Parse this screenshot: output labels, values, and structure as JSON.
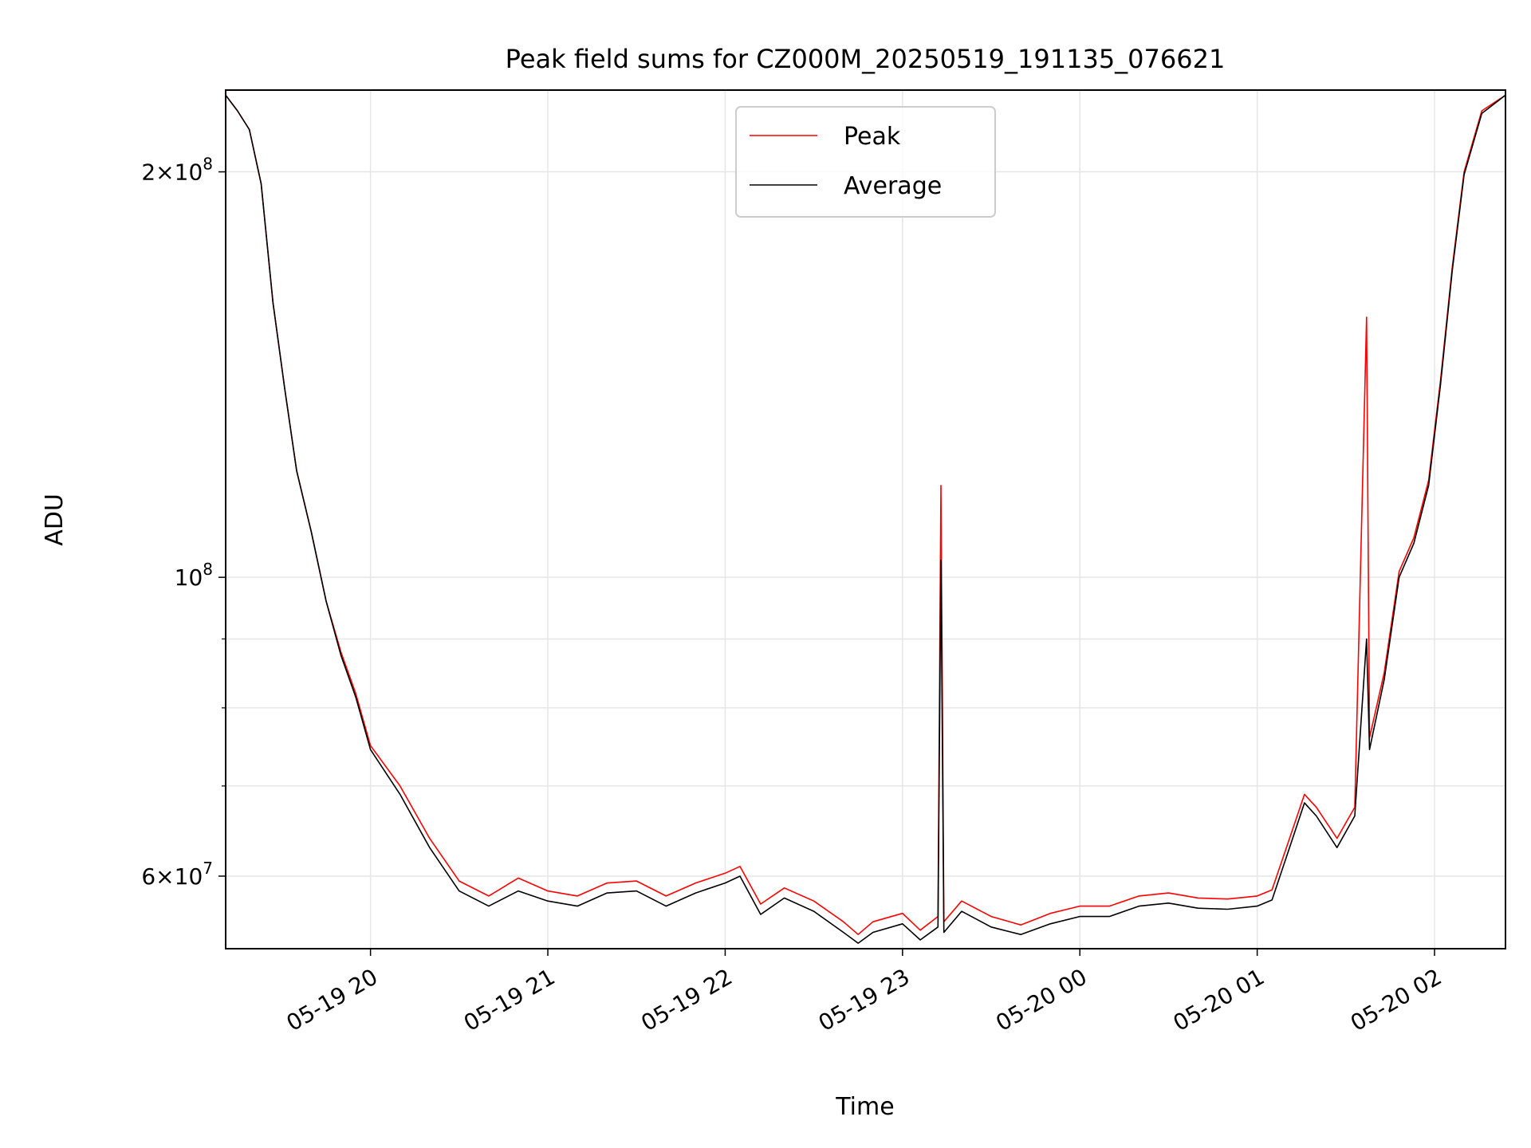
{
  "chart_data": {
    "type": "line",
    "title": "Peak field sums for CZ000M_20250519_191135_076621",
    "xlabel": "Time",
    "ylabel": "ADU",
    "yscale": "log",
    "ylim": [
      53000000,
      230000000
    ],
    "xlim": [
      "2025-05-19 19:11",
      "2025-05-20 02:24"
    ],
    "grid": true,
    "legend_position": "top-center",
    "x_ticks": [
      {
        "t": "2025-05-19 20:00",
        "label": "05-19 20"
      },
      {
        "t": "2025-05-19 21:00",
        "label": "05-19 21"
      },
      {
        "t": "2025-05-19 22:00",
        "label": "05-19 22"
      },
      {
        "t": "2025-05-19 23:00",
        "label": "05-19 23"
      },
      {
        "t": "2025-05-20 00:00",
        "label": "05-20 00"
      },
      {
        "t": "2025-05-20 01:00",
        "label": "05-20 01"
      },
      {
        "t": "2025-05-20 02:00",
        "label": "05-20 02"
      }
    ],
    "y_ticks_major": [
      {
        "v": 60000000,
        "base": "6",
        "sup": "7"
      },
      {
        "v": 100000000,
        "base": "",
        "sup": "8"
      },
      {
        "v": 200000000,
        "base": "2",
        "sup": "8"
      }
    ],
    "y_ticks_minor": [
      70000000,
      80000000,
      90000000
    ],
    "series": [
      {
        "name": "Peak",
        "color": "#ff0000",
        "points": [
          [
            "2025-05-19 19:11",
            228000000
          ],
          [
            "2025-05-19 19:15",
            222000000
          ],
          [
            "2025-05-19 19:19",
            215000000
          ],
          [
            "2025-05-19 19:23",
            196000000
          ],
          [
            "2025-05-19 19:27",
            160000000
          ],
          [
            "2025-05-19 19:31",
            138000000
          ],
          [
            "2025-05-19 19:35",
            120000000
          ],
          [
            "2025-05-19 19:40",
            108000000
          ],
          [
            "2025-05-19 19:45",
            96000000
          ],
          [
            "2025-05-19 19:50",
            88000000
          ],
          [
            "2025-05-19 19:55",
            82000000
          ],
          [
            "2025-05-19 20:00",
            75000000
          ],
          [
            "2025-05-19 20:10",
            70000000
          ],
          [
            "2025-05-19 20:20",
            64000000
          ],
          [
            "2025-05-19 20:30",
            59500000
          ],
          [
            "2025-05-19 20:40",
            58000000
          ],
          [
            "2025-05-19 20:50",
            59800000
          ],
          [
            "2025-05-19 21:00",
            58500000
          ],
          [
            "2025-05-19 21:10",
            58000000
          ],
          [
            "2025-05-19 21:20",
            59300000
          ],
          [
            "2025-05-19 21:30",
            59500000
          ],
          [
            "2025-05-19 21:40",
            58000000
          ],
          [
            "2025-05-19 21:50",
            59300000
          ],
          [
            "2025-05-19 22:00",
            60300000
          ],
          [
            "2025-05-19 22:05",
            61000000
          ],
          [
            "2025-05-19 22:12",
            57200000
          ],
          [
            "2025-05-19 22:20",
            58800000
          ],
          [
            "2025-05-19 22:30",
            57500000
          ],
          [
            "2025-05-19 22:40",
            55500000
          ],
          [
            "2025-05-19 22:45",
            54300000
          ],
          [
            "2025-05-19 22:50",
            55500000
          ],
          [
            "2025-05-19 23:00",
            56300000
          ],
          [
            "2025-05-19 23:06",
            54700000
          ],
          [
            "2025-05-19 23:12",
            56000000
          ],
          [
            "2025-05-19 23:13",
            117000000
          ],
          [
            "2025-05-19 23:14",
            55500000
          ],
          [
            "2025-05-19 23:20",
            57500000
          ],
          [
            "2025-05-19 23:30",
            56000000
          ],
          [
            "2025-05-19 23:40",
            55200000
          ],
          [
            "2025-05-19 23:50",
            56300000
          ],
          [
            "2025-05-20 00:00",
            57000000
          ],
          [
            "2025-05-20 00:10",
            57000000
          ],
          [
            "2025-05-20 00:20",
            58000000
          ],
          [
            "2025-05-20 00:30",
            58300000
          ],
          [
            "2025-05-20 00:40",
            57800000
          ],
          [
            "2025-05-20 00:50",
            57700000
          ],
          [
            "2025-05-20 01:00",
            58000000
          ],
          [
            "2025-05-20 01:05",
            58600000
          ],
          [
            "2025-05-20 01:12",
            65000000
          ],
          [
            "2025-05-20 01:16",
            69000000
          ],
          [
            "2025-05-20 01:20",
            67500000
          ],
          [
            "2025-05-20 01:27",
            64000000
          ],
          [
            "2025-05-20 01:33",
            67500000
          ],
          [
            "2025-05-20 01:37",
            156000000
          ],
          [
            "2025-05-20 01:38",
            76000000
          ],
          [
            "2025-05-20 01:43",
            85000000
          ],
          [
            "2025-05-20 01:48",
            101000000
          ],
          [
            "2025-05-20 01:53",
            107000000
          ],
          [
            "2025-05-20 01:58",
            118000000
          ],
          [
            "2025-05-20 02:02",
            140000000
          ],
          [
            "2025-05-20 02:06",
            170000000
          ],
          [
            "2025-05-20 02:10",
            200000000
          ],
          [
            "2025-05-20 02:16",
            222000000
          ],
          [
            "2025-05-20 02:24",
            228000000
          ]
        ]
      },
      {
        "name": "Average",
        "color": "#000000",
        "points": [
          [
            "2025-05-19 19:11",
            228000000
          ],
          [
            "2025-05-19 19:15",
            222000000
          ],
          [
            "2025-05-19 19:19",
            215000000
          ],
          [
            "2025-05-19 19:23",
            196000000
          ],
          [
            "2025-05-19 19:27",
            160000000
          ],
          [
            "2025-05-19 19:31",
            138000000
          ],
          [
            "2025-05-19 19:35",
            120000000
          ],
          [
            "2025-05-19 19:40",
            108000000
          ],
          [
            "2025-05-19 19:45",
            96000000
          ],
          [
            "2025-05-19 19:50",
            87500000
          ],
          [
            "2025-05-19 19:55",
            81500000
          ],
          [
            "2025-05-19 20:00",
            74500000
          ],
          [
            "2025-05-19 20:10",
            69000000
          ],
          [
            "2025-05-19 20:20",
            63000000
          ],
          [
            "2025-05-19 20:30",
            58500000
          ],
          [
            "2025-05-19 20:40",
            57000000
          ],
          [
            "2025-05-19 20:50",
            58500000
          ],
          [
            "2025-05-19 21:00",
            57500000
          ],
          [
            "2025-05-19 21:10",
            57000000
          ],
          [
            "2025-05-19 21:20",
            58300000
          ],
          [
            "2025-05-19 21:30",
            58500000
          ],
          [
            "2025-05-19 21:40",
            57000000
          ],
          [
            "2025-05-19 21:50",
            58300000
          ],
          [
            "2025-05-19 22:00",
            59300000
          ],
          [
            "2025-05-19 22:05",
            60000000
          ],
          [
            "2025-05-19 22:12",
            56200000
          ],
          [
            "2025-05-19 22:20",
            57800000
          ],
          [
            "2025-05-19 22:30",
            56500000
          ],
          [
            "2025-05-19 22:40",
            54500000
          ],
          [
            "2025-05-19 22:45",
            53500000
          ],
          [
            "2025-05-19 22:50",
            54500000
          ],
          [
            "2025-05-19 23:00",
            55300000
          ],
          [
            "2025-05-19 23:06",
            53800000
          ],
          [
            "2025-05-19 23:12",
            55000000
          ],
          [
            "2025-05-19 23:13",
            103000000
          ],
          [
            "2025-05-19 23:14",
            54500000
          ],
          [
            "2025-05-19 23:20",
            56500000
          ],
          [
            "2025-05-19 23:30",
            55000000
          ],
          [
            "2025-05-19 23:40",
            54300000
          ],
          [
            "2025-05-19 23:50",
            55300000
          ],
          [
            "2025-05-20 00:00",
            56000000
          ],
          [
            "2025-05-20 00:10",
            56000000
          ],
          [
            "2025-05-20 00:20",
            57000000
          ],
          [
            "2025-05-20 00:30",
            57300000
          ],
          [
            "2025-05-20 00:40",
            56800000
          ],
          [
            "2025-05-20 00:50",
            56700000
          ],
          [
            "2025-05-20 01:00",
            57000000
          ],
          [
            "2025-05-20 01:05",
            57600000
          ],
          [
            "2025-05-20 01:12",
            64000000
          ],
          [
            "2025-05-20 01:16",
            68000000
          ],
          [
            "2025-05-20 01:20",
            66500000
          ],
          [
            "2025-05-20 01:27",
            63000000
          ],
          [
            "2025-05-20 01:33",
            66500000
          ],
          [
            "2025-05-20 01:37",
            90000000
          ],
          [
            "2025-05-20 01:38",
            74500000
          ],
          [
            "2025-05-20 01:43",
            84000000
          ],
          [
            "2025-05-20 01:48",
            100000000
          ],
          [
            "2025-05-20 01:53",
            106000000
          ],
          [
            "2025-05-20 01:58",
            117000000
          ],
          [
            "2025-05-20 02:02",
            139000000
          ],
          [
            "2025-05-20 02:06",
            169000000
          ],
          [
            "2025-05-20 02:10",
            199000000
          ],
          [
            "2025-05-20 02:16",
            221000000
          ],
          [
            "2025-05-20 02:24",
            228000000
          ]
        ]
      }
    ]
  }
}
